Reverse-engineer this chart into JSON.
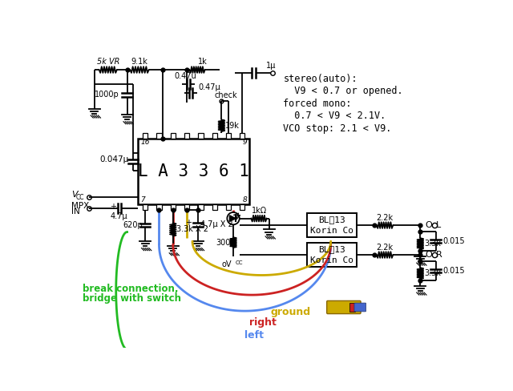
{
  "bg": "#ffffff",
  "blk": "#000000",
  "ic_label": "L A 3 3 6 1",
  "stereo": [
    "stereo(auto):",
    "  V9 < 0.7 or opened.",
    "forced mono:",
    "  0.7 < V9 < 2.1V.",
    "VCO stop: 2.1 < V9."
  ],
  "green_l1": "break connection,",
  "green_l2": "bridge with switch",
  "c_blue": "#5588ee",
  "c_red": "#cc2222",
  "c_yellow": "#ccaa00",
  "c_green": "#22bb22",
  "lw": 1.3,
  "wlw": 2.0
}
